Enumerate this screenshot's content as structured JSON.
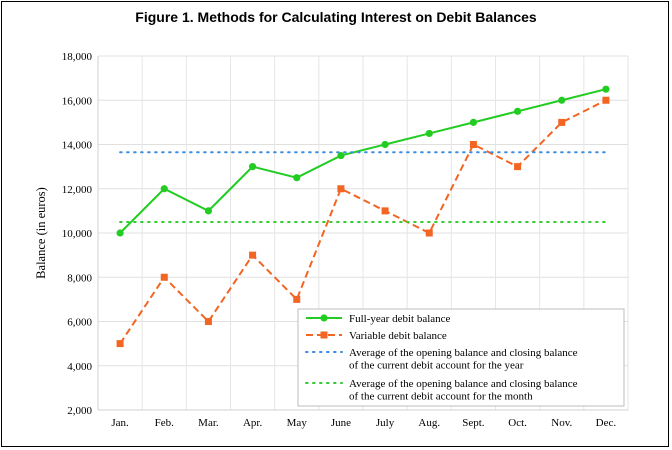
{
  "chart_data": {
    "type": "line",
    "title": "Figure 1. Methods for Calculating Interest on Debit Balances",
    "xlabel": "",
    "ylabel": "Balance (in euros)",
    "ylim": [
      2000,
      18000
    ],
    "yticks": [
      2000,
      4000,
      6000,
      8000,
      10000,
      12000,
      14000,
      16000,
      18000
    ],
    "ytick_labels": [
      "2,000",
      "4,000",
      "6,000",
      "8,000",
      "10,000",
      "12,000",
      "14,000",
      "16,000",
      "18,000"
    ],
    "categories": [
      "Jan.",
      "Feb.",
      "Mar.",
      "Apr.",
      "May",
      "June",
      "July",
      "Aug.",
      "Sept.",
      "Oct.",
      "Nov.",
      "Dec."
    ],
    "grid": true,
    "legend_position": "bottom-right",
    "series": [
      {
        "name": "Full-year debit balance",
        "values": [
          10000,
          12000,
          11000,
          13000,
          12500,
          13500,
          14000,
          14500,
          15000,
          15500,
          16000,
          16500
        ],
        "color": "#22cc22",
        "style": "solid",
        "marker": "circle"
      },
      {
        "name": "Variable debit balance",
        "values": [
          5000,
          8000,
          6000,
          9000,
          7000,
          12000,
          11000,
          10000,
          14000,
          13000,
          15000,
          16000
        ],
        "color": "#f26522",
        "style": "dashed",
        "marker": "square"
      },
      {
        "name": [
          "Average of the opening balance and closing balance",
          "of the current debit account for the year"
        ],
        "values": [
          13650,
          13650,
          13650,
          13650,
          13650,
          13650,
          13650,
          13650,
          13650,
          13650,
          13650,
          13650
        ],
        "color": "#3b8fe0",
        "style": "dotted",
        "marker": "none"
      },
      {
        "name": [
          "Average of the opening balance and closing balance",
          "of the current debit account for the month"
        ],
        "values": [
          10500,
          10500,
          10500,
          10500,
          10500,
          10500,
          10500,
          10500,
          10500,
          10500,
          10500,
          10500
        ],
        "color": "#33cc33",
        "style": "dotted",
        "marker": "none"
      }
    ]
  }
}
